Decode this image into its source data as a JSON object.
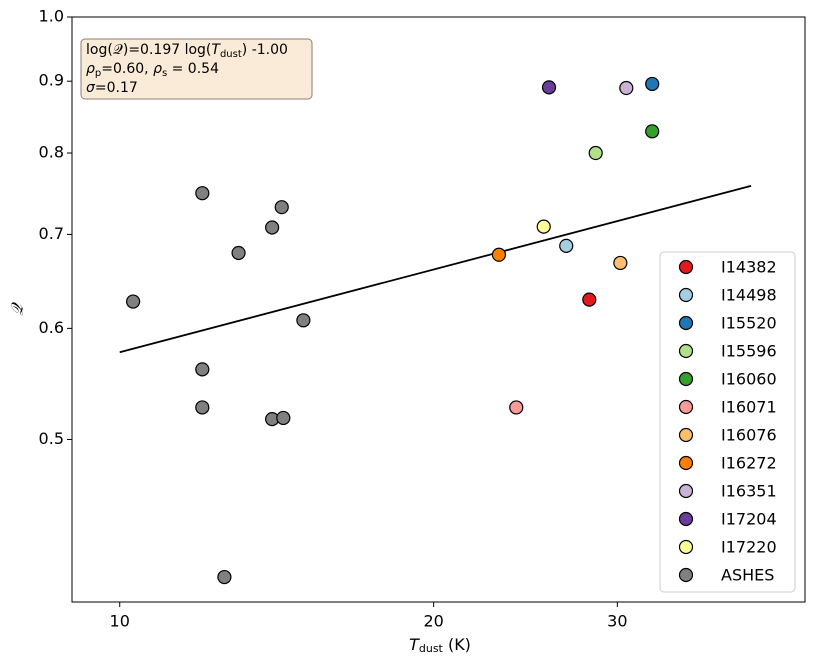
{
  "chart_data": {
    "type": "scatter",
    "xlabel": [
      "T",
      "dust",
      " (K)"
    ],
    "ylabel": "𝒬",
    "annotation": [
      [
        "log(𝒬)=0.197 log(",
        "T",
        "dust",
        ") -1.00"
      ],
      [
        "ρ",
        "p",
        "=0.60, ",
        "ρ",
        "s",
        " = 0.54"
      ],
      [
        "σ",
        "=0.17"
      ]
    ],
    "xscale": "log",
    "yscale": "log",
    "xlim": [
      9.0,
      45.4
    ],
    "ylim": [
      0.383,
      1.0
    ],
    "xticks": [
      10,
      20,
      30
    ],
    "yticks": [
      0.5,
      0.6,
      0.7,
      0.8,
      0.9,
      {
        "value": 1,
        "label": "1.0"
      }
    ],
    "fit_line": {
      "color": "#000000",
      "x": [
        10,
        40.3
      ],
      "y": [
        0.577,
        0.758
      ]
    },
    "legend": "lower right",
    "series": [
      {
        "name": "I14382",
        "color": "#e31a1c",
        "x": [
          28.2
        ],
        "y": [
          0.629
        ]
      },
      {
        "name": "I14498",
        "color": "#a6cee3",
        "x": [
          26.8
        ],
        "y": [
          0.687
        ]
      },
      {
        "name": "I15520",
        "color": "#1f78b4",
        "x": [
          32.4
        ],
        "y": [
          0.896
        ]
      },
      {
        "name": "I15596",
        "color": "#b2df8a",
        "x": [
          28.6
        ],
        "y": [
          0.8
        ]
      },
      {
        "name": "I16060",
        "color": "#33a02c",
        "x": [
          32.4
        ],
        "y": [
          0.829
        ]
      },
      {
        "name": "I16071",
        "color": "#fb9a99",
        "x": [
          24.0
        ],
        "y": [
          0.527
        ]
      },
      {
        "name": "I16076",
        "color": "#fdbf6f",
        "x": [
          30.2
        ],
        "y": [
          0.668
        ]
      },
      {
        "name": "I16272",
        "color": "#ff7f00",
        "x": [
          23.1
        ],
        "y": [
          0.677
        ]
      },
      {
        "name": "I16351",
        "color": "#cab2d6",
        "x": [
          30.6
        ],
        "y": [
          0.89
        ]
      },
      {
        "name": "I17204",
        "color": "#6a3d9a",
        "x": [
          25.8
        ],
        "y": [
          0.891
        ]
      },
      {
        "name": "I17220",
        "color": "#ffff99",
        "x": [
          25.5
        ],
        "y": [
          0.709
        ]
      },
      {
        "name": "ASHES",
        "color": "#808080",
        "x": [
          10.3,
          12.0,
          14.3,
          14.0,
          13.0,
          15.0,
          12.0,
          12.0,
          14.0,
          14.35,
          12.6
        ],
        "y": [
          0.627,
          0.749,
          0.732,
          0.708,
          0.679,
          0.608,
          0.561,
          0.527,
          0.517,
          0.518,
          0.399
        ]
      }
    ]
  }
}
